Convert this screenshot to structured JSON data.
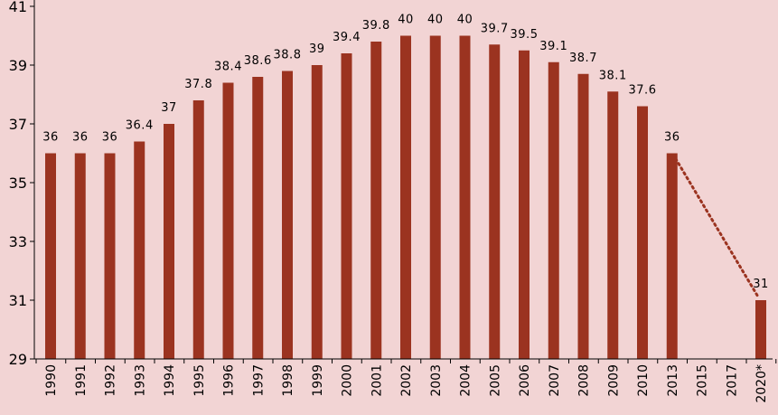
{
  "chart_data": {
    "type": "bar",
    "title": "",
    "xlabel": "",
    "ylabel": "",
    "ylim": [
      29,
      41
    ],
    "yticks": [
      29,
      31,
      33,
      35,
      37,
      39,
      41
    ],
    "grid": false,
    "legend": "none",
    "colors": {
      "bar": "#9b3320",
      "trend_line": "#9b3320",
      "background": "#f2d4d4",
      "axis": "#000000"
    },
    "categories": [
      "1990",
      "1991",
      "1992",
      "1993",
      "1994",
      "1995",
      "1996",
      "1997",
      "1998",
      "1999",
      "2000",
      "2001",
      "2002",
      "2003",
      "2004",
      "2005",
      "2006",
      "2007",
      "2008",
      "2009",
      "2010",
      "2013",
      "2015",
      "2017",
      "2020*"
    ],
    "series": [
      {
        "values": [
          36,
          36,
          36,
          36.4,
          37,
          37.8,
          38.4,
          38.6,
          38.8,
          39,
          39.4,
          39.8,
          40,
          40,
          40,
          39.7,
          39.5,
          39.1,
          38.7,
          38.1,
          37.6,
          36,
          null,
          null,
          31
        ],
        "labels": [
          "36",
          "36",
          "36",
          "36.4",
          "37",
          "37.8",
          "38.4",
          "38.6",
          "38.8",
          "39",
          "39.4",
          "39.8",
          "40",
          "40",
          "40",
          "39.7",
          "39.5",
          "39.1",
          "38.7",
          "38.1",
          "37.6",
          "36",
          "",
          "",
          "31"
        ]
      }
    ],
    "trend_line": {
      "style": "dotted",
      "from": "2013",
      "to": "2020*"
    }
  }
}
